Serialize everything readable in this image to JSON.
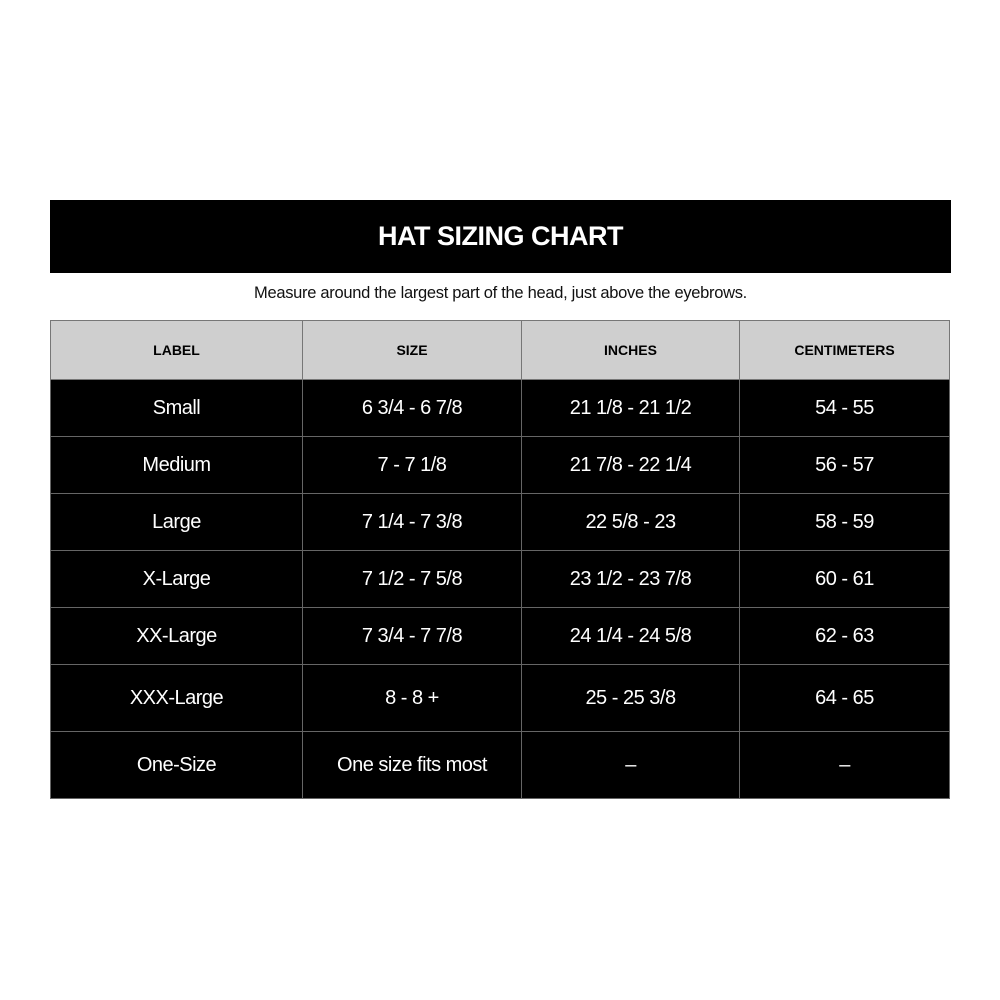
{
  "title": "HAT SIZING CHART",
  "subtitle": "Measure around the largest part of the head, just above the eyebrows.",
  "columns": [
    "LABEL",
    "SIZE",
    "INCHES",
    "CENTIMETERS"
  ],
  "rows": [
    [
      "Small",
      "6 3/4 - 6 7/8",
      "21 1/8 - 21 1/2",
      "54 - 55"
    ],
    [
      "Medium",
      "7 - 7 1/8",
      "21 7/8 - 22 1/4",
      "56 - 57"
    ],
    [
      "Large",
      "7 1/4 - 7 3/8",
      "22 5/8 - 23",
      "58 - 59"
    ],
    [
      "X-Large",
      "7 1/2 - 7 5/8",
      "23 1/2 - 23 7/8",
      "60 - 61"
    ],
    [
      "XX-Large",
      "7 3/4 - 7 7/8",
      "24 1/4 - 24 5/8",
      "62 - 63"
    ],
    [
      "XXX-Large",
      "8 - 8 +",
      "25 - 25 3/8",
      "64 - 65"
    ],
    [
      "One-Size",
      "One size fits most",
      "–",
      "–"
    ]
  ]
}
